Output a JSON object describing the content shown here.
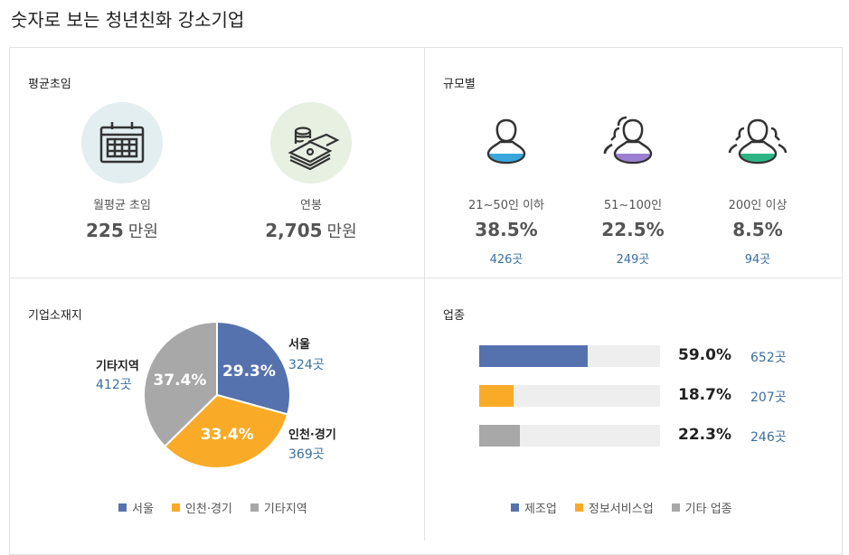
{
  "title": "숫자로 보는 청년친화 강소기업",
  "salary": {
    "heading": "평균초임",
    "items": [
      {
        "label": "월평균 초임",
        "value": "225",
        "unit": "만원",
        "icon": "calendar-icon",
        "bg": "#e3eef0"
      },
      {
        "label": "연봉",
        "value": "2,705",
        "unit": "만원",
        "icon": "money-icon",
        "bg": "#e8f0e2"
      }
    ]
  },
  "size": {
    "heading": "규모별",
    "items": [
      {
        "label": "21~50인 이하",
        "pct": "38.5%",
        "count": "426곳",
        "color": "#3aa6dc",
        "icon": "person-icon"
      },
      {
        "label": "51~100인",
        "pct": "22.5%",
        "count": "249곳",
        "color": "#9b7fd0",
        "icon": "two-people-icon"
      },
      {
        "label": "200인 이상",
        "pct": "8.5%",
        "count": "94곳",
        "color": "#2eb585",
        "icon": "group-icon"
      }
    ]
  },
  "chart_data": [
    {
      "type": "pie",
      "heading": "기업소재지",
      "categories": [
        "서울",
        "인천·경기",
        "기타지역"
      ],
      "values": [
        29.3,
        33.4,
        37.4
      ],
      "value_labels": [
        "29.3%",
        "33.4%",
        "37.4%"
      ],
      "counts": [
        "324곳",
        "369곳",
        "412곳"
      ],
      "colors": [
        "#5672ae",
        "#f9ab28",
        "#a8a8a8"
      ],
      "legend": "bottom"
    },
    {
      "type": "bar",
      "orientation": "horizontal",
      "heading": "업종",
      "categories": [
        "제조업",
        "정보서비스업",
        "기타 업종"
      ],
      "values": [
        59.0,
        18.7,
        22.3
      ],
      "value_labels": [
        "59.0%",
        "18.7%",
        "22.3%"
      ],
      "counts": [
        "652곳",
        "207곳",
        "246곳"
      ],
      "colors": [
        "#5672ae",
        "#f9ab28",
        "#a8a8a8"
      ],
      "legend": "bottom"
    }
  ]
}
